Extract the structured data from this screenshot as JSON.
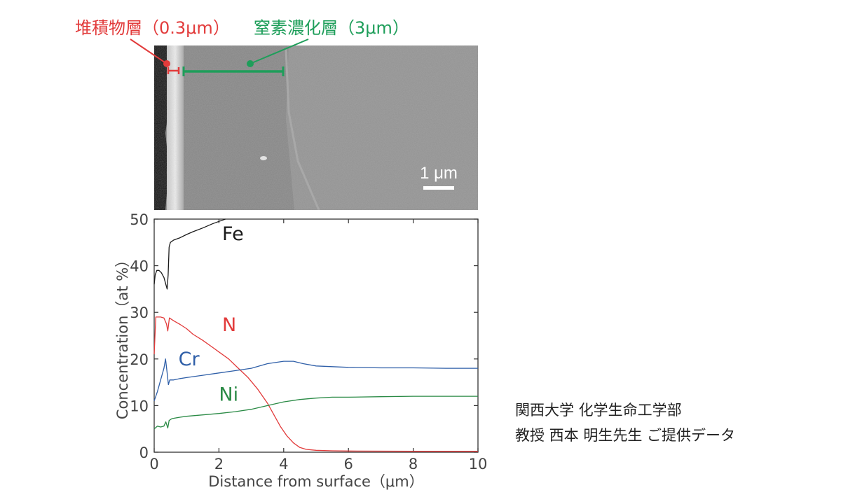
{
  "annotations": {
    "deposit_layer": {
      "label": "堆積物層（0.3μm）",
      "color": "#e23b3b"
    },
    "nitrided_layer": {
      "label": "窒素濃化層（3μm）",
      "color": "#1e9e5a"
    }
  },
  "micrograph": {
    "scale_bar_label": "1 μm"
  },
  "credit": {
    "line1": "関西大学 化学生命工学部",
    "line2": "教授 西本 明生先生 ご提供データ"
  },
  "chart_data": {
    "type": "line",
    "xlabel": "Distance from surface（μm）",
    "ylabel": "Concentration（at %）",
    "xlim": [
      0,
      10
    ],
    "ylim": [
      0,
      50
    ],
    "xticks": [
      0,
      2,
      4,
      6,
      8,
      10
    ],
    "yticks": [
      0,
      10,
      20,
      30,
      40,
      50
    ],
    "x_tick_labels": [
      "0",
      "2",
      "4",
      "6",
      "8",
      "10"
    ],
    "y_tick_labels": [
      "0",
      "10",
      "20",
      "30",
      "40",
      "50"
    ],
    "grid": false,
    "series": [
      {
        "name": "Fe",
        "color": "#1a1a1a",
        "x": [
          0,
          0.03,
          0.08,
          0.15,
          0.22,
          0.3,
          0.36,
          0.4,
          0.43,
          0.46,
          0.5,
          0.6,
          0.8,
          1.0,
          1.2,
          1.5,
          1.8,
          2.0,
          2.2
        ],
        "y": [
          36,
          38,
          39,
          39,
          38.5,
          37.5,
          36,
          35,
          38,
          44,
          45,
          45.5,
          46,
          46.7,
          47.3,
          48.1,
          49,
          49.5,
          50
        ]
      },
      {
        "name": "N",
        "color": "#e23b3b",
        "x": [
          0,
          0.05,
          0.1,
          0.2,
          0.3,
          0.38,
          0.42,
          0.47,
          0.6,
          0.8,
          1.0,
          1.2,
          1.5,
          1.8,
          2.0,
          2.3,
          2.6,
          2.9,
          3.2,
          3.5,
          3.7,
          3.9,
          4.1,
          4.3,
          4.5,
          4.7,
          5.0,
          5.5,
          6,
          8,
          10
        ],
        "y": [
          21,
          29,
          29,
          29,
          28.8,
          27.5,
          26,
          28.8,
          28.2,
          27.4,
          26.5,
          25.3,
          24,
          22.5,
          21.5,
          20,
          18,
          16,
          13.5,
          10.5,
          8,
          5.5,
          3.5,
          2,
          1,
          0.6,
          0.4,
          0.3,
          0.25,
          0.2,
          0.2
        ]
      },
      {
        "name": "Cr",
        "color": "#2f5fa8",
        "x": [
          0,
          0.1,
          0.2,
          0.3,
          0.35,
          0.4,
          0.44,
          0.48,
          0.6,
          0.8,
          1.0,
          1.5,
          2.0,
          2.5,
          3.0,
          3.5,
          4.0,
          4.3,
          4.6,
          5.0,
          6.0,
          7.0,
          8.0,
          9.0,
          10.0
        ],
        "y": [
          11,
          13,
          15.5,
          18,
          20,
          17,
          14.5,
          15.5,
          15.5,
          15.8,
          16,
          16.5,
          17,
          17.5,
          18,
          19,
          19.5,
          19.5,
          19,
          18.5,
          18.2,
          18.1,
          18.1,
          18.0,
          18.0
        ]
      },
      {
        "name": "Ni",
        "color": "#2a8a45",
        "x": [
          0,
          0.1,
          0.2,
          0.3,
          0.36,
          0.42,
          0.46,
          0.55,
          0.8,
          1.0,
          1.5,
          2.0,
          2.5,
          3.0,
          3.5,
          4.0,
          4.5,
          5.0,
          5.5,
          6.0,
          7.0,
          8.0,
          9.0,
          10.0
        ],
        "y": [
          5,
          5.6,
          5.4,
          5.6,
          6.5,
          5.2,
          6.8,
          7.2,
          7.5,
          7.7,
          8,
          8.3,
          8.7,
          9.2,
          10,
          10.8,
          11.3,
          11.6,
          11.8,
          11.8,
          11.9,
          12,
          12,
          12
        ]
      }
    ],
    "series_labels": [
      {
        "text": "Fe",
        "color": "#1a1a1a",
        "at": [
          2.1,
          45.5
        ]
      },
      {
        "text": "N",
        "color": "#e23b3b",
        "at": [
          2.1,
          26.0
        ]
      },
      {
        "text": "Cr",
        "color": "#2f5fa8",
        "at": [
          0.75,
          18.6
        ]
      },
      {
        "text": "Ni",
        "color": "#2a8a45",
        "at": [
          2.0,
          11.0
        ]
      }
    ]
  }
}
